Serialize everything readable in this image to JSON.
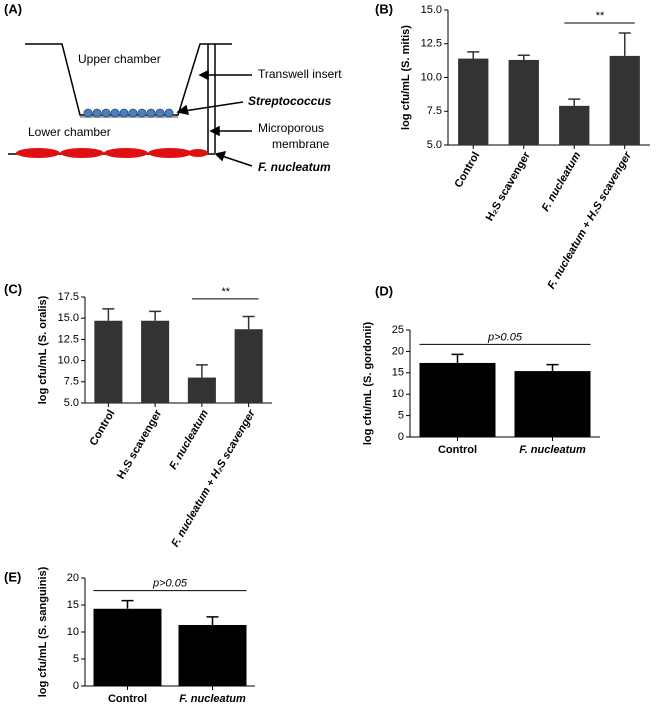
{
  "diagram": {
    "panel": "(A)",
    "upper": "Upper chamber",
    "lower": "Lower chamber",
    "insert": "Transwell insert",
    "bacteria": "Streptococcus",
    "membrane": [
      "Microporous",
      "membrane"
    ],
    "bottom": "F. nucleatum"
  },
  "chart_data": [
    {
      "type": "bar",
      "panel": "(B)",
      "y_label": "log cfu/mL (S. mitis)",
      "categories": [
        "Control",
        "H₂S scavenger",
        "F. nucleatum",
        "F. nucleatum + H₂S scavenger"
      ],
      "values": [
        11.4,
        11.3,
        7.9,
        11.6
      ],
      "errors": [
        0.5,
        0.35,
        0.5,
        1.7
      ],
      "color": "#333333",
      "ylim": [
        5,
        15
      ],
      "yticks": [
        {
          "value": 5,
          "label": "5.0"
        },
        7.5,
        {
          "value": 10,
          "label": "10.0"
        },
        12.5,
        {
          "value": 15,
          "label": "15.0"
        }
      ],
      "significance": "**"
    },
    {
      "type": "bar",
      "panel": "(C)",
      "y_label": "log cfu/mL (S. oralis)",
      "categories": [
        "Control",
        "H₂S scavenger",
        "F. nucleatum",
        "F. nucleatum + H₂S scavenger"
      ],
      "values": [
        14.7,
        14.7,
        8.0,
        13.7
      ],
      "errors": [
        1.4,
        1.1,
        1.5,
        1.5
      ],
      "color": "#333333",
      "ylim": [
        5,
        17.5
      ],
      "yticks": [
        {
          "value": 5,
          "label": "5.0"
        },
        7.5,
        {
          "value": 10,
          "label": "10.0"
        },
        12.5,
        {
          "value": 15,
          "label": "15.0"
        },
        17.5
      ],
      "significance": "**"
    },
    {
      "type": "bar",
      "panel": "(D)",
      "y_label": "log cfu/mL (S. gordonii)",
      "categories": [
        "Control",
        "F. nucleatum"
      ],
      "values": [
        17.3,
        15.4
      ],
      "errors": [
        2.0,
        1.5
      ],
      "color": "#000000",
      "ylim": [
        0,
        25
      ],
      "yticks": [
        0,
        5,
        10,
        15,
        20,
        25
      ],
      "significance": "p>0.05"
    },
    {
      "type": "bar",
      "panel": "(E)",
      "y_label": "log cfu/mL (S. sanguinis)",
      "categories": [
        "Control",
        "F. nucleatum"
      ],
      "values": [
        14.3,
        11.3
      ],
      "errors": [
        1.5,
        1.5
      ],
      "color": "#000000",
      "ylim": [
        0,
        20
      ],
      "yticks": [
        0,
        5,
        10,
        15,
        20
      ],
      "significance": "p>0.05"
    }
  ]
}
